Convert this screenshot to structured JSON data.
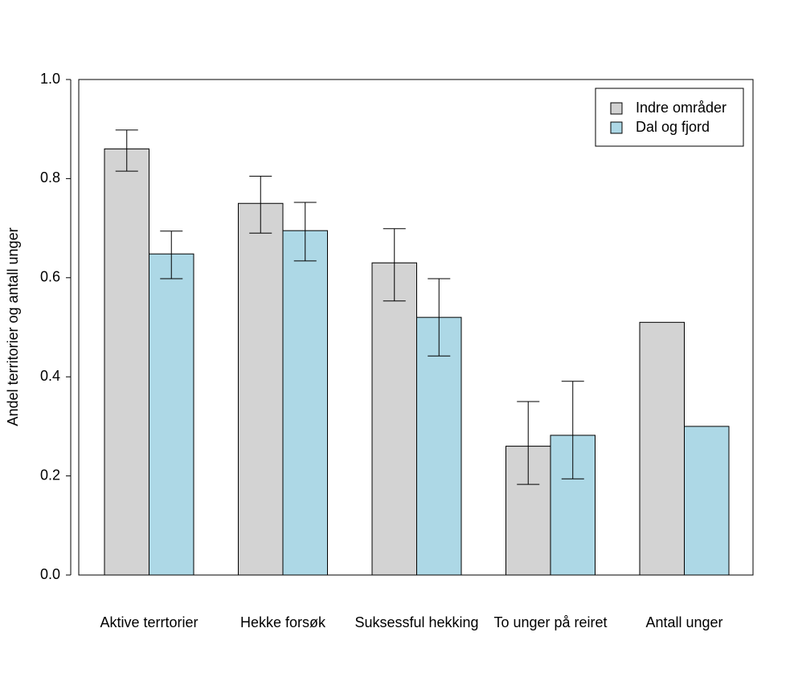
{
  "chart_data": {
    "type": "bar",
    "y_label": "Andel territorier og antall unger",
    "categories": [
      "Aktive terrtorier",
      "Hekke forsøk",
      "Suksessful hekking",
      "To unger på reiret",
      "Antall unger"
    ],
    "series": [
      {
        "name": "Indre områder",
        "color": "#d3d3d3",
        "values": [
          0.86,
          0.75,
          0.63,
          0.26,
          0.51
        ],
        "lower": [
          0.815,
          0.69,
          0.553,
          0.183,
          null
        ],
        "upper": [
          0.898,
          0.805,
          0.699,
          0.35,
          null
        ]
      },
      {
        "name": "Dal og fjord",
        "color": "#add8e6",
        "values": [
          0.648,
          0.695,
          0.52,
          0.282,
          0.3
        ],
        "lower": [
          0.598,
          0.634,
          0.442,
          0.194,
          null
        ],
        "upper": [
          0.694,
          0.752,
          0.598,
          0.391,
          null
        ]
      }
    ],
    "ylim": [
      0,
      1
    ],
    "yticks": [
      {
        "value": 0,
        "label": "0.0"
      },
      {
        "value": 0.2,
        "label": "0.2"
      },
      {
        "value": 0.4,
        "label": "0.4"
      },
      {
        "value": 0.6,
        "label": "0.6"
      },
      {
        "value": 0.8,
        "label": "0.8"
      },
      {
        "value": 1,
        "label": "1.0"
      }
    ],
    "legend": "topright"
  }
}
